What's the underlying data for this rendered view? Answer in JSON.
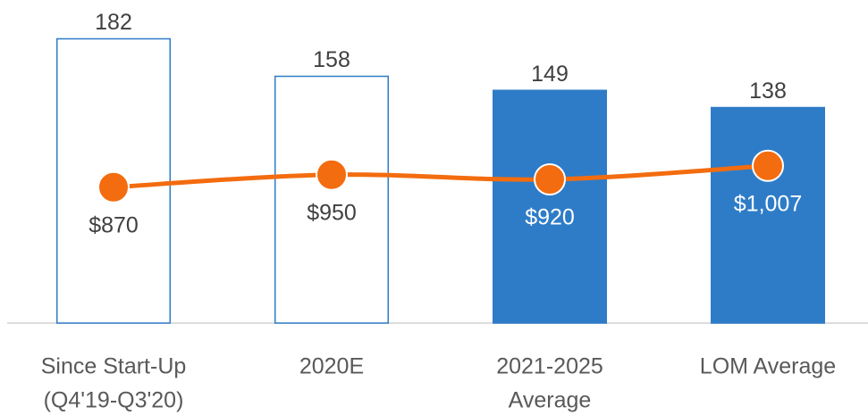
{
  "chart_data": {
    "type": "bar-line",
    "categories": [
      [
        "Since Start-Up",
        "(Q4'19-Q3'20)"
      ],
      [
        "2020E"
      ],
      [
        "2021-2025",
        "Average"
      ],
      [
        "LOM Average"
      ]
    ],
    "series": [
      {
        "type": "bar",
        "color": "#2e7cc7",
        "filled": [
          false,
          false,
          true,
          true
        ],
        "values": [
          182,
          158,
          149,
          138
        ]
      },
      {
        "type": "line",
        "color": "#f36c0f",
        "axis": "y2",
        "values": [
          870,
          950,
          920,
          1007
        ],
        "value_labels": [
          "$870",
          "$950",
          "$920",
          "$1,007"
        ]
      }
    ],
    "ylim": [
      0,
      200
    ],
    "y2lim": [
      0,
      2000
    ]
  }
}
